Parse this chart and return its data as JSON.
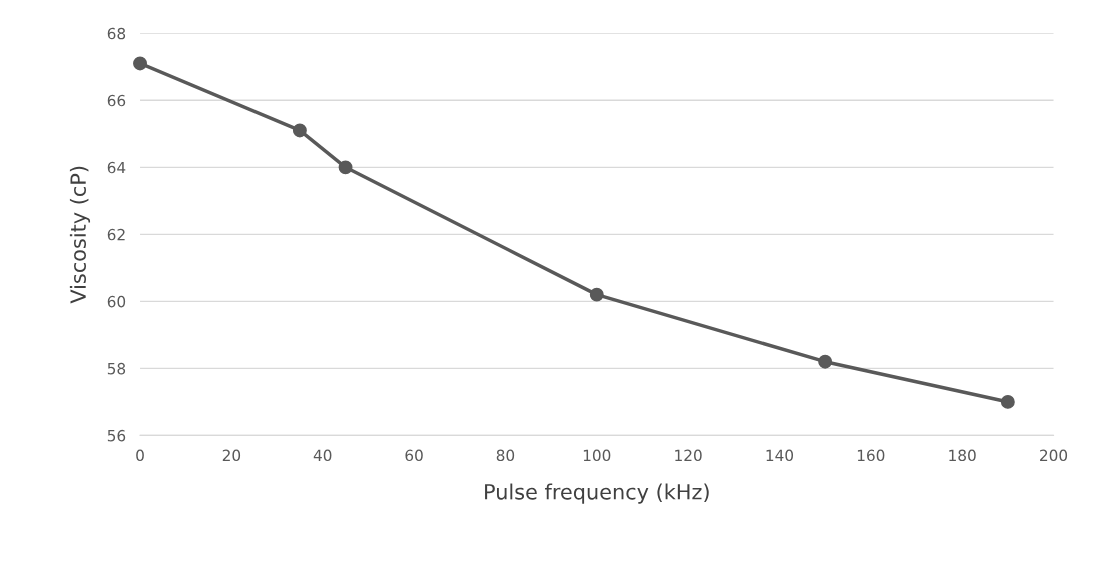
{
  "chart_data": {
    "type": "line",
    "x": [
      0,
      35,
      45,
      100,
      150,
      190
    ],
    "series": [
      {
        "color": "#595959",
        "values": [
          67.1,
          65.1,
          64.0,
          60.2,
          58.2,
          57.0
        ]
      }
    ],
    "xlabel": "Pulse frequency (kHz)",
    "ylabel": "Viscosity (cP)",
    "xlim": [
      0,
      200
    ],
    "xticks": [
      0,
      20,
      40,
      60,
      80,
      100,
      120,
      140,
      160,
      180,
      200
    ],
    "ylim": [
      56,
      68
    ],
    "yticks": [
      56,
      58,
      60,
      62,
      64,
      66,
      68
    ],
    "grid": "y",
    "marker": "circle",
    "line_style": "solid"
  }
}
